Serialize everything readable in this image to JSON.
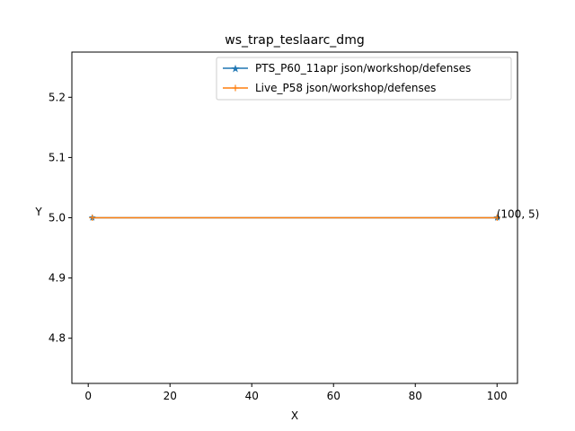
{
  "chart_data": {
    "type": "line",
    "title": "ws_trap_teslaarc_dmg",
    "xlabel": "X",
    "ylabel": "Y",
    "xlim": [
      -4,
      105
    ],
    "ylim": [
      4.725,
      5.275
    ],
    "xticks": [
      0,
      20,
      40,
      60,
      80,
      100
    ],
    "yticks": [
      4.8,
      4.9,
      5.0,
      5.1,
      5.2
    ],
    "xtick_labels": [
      "0",
      "20",
      "40",
      "60",
      "80",
      "100"
    ],
    "ytick_labels": [
      "4.8",
      "4.9",
      "5.0",
      "5.1",
      "5.2"
    ],
    "grid": false,
    "legend_position": "upper right",
    "series": [
      {
        "name": "PTS_P60_11apr json/workshop/defenses",
        "color": "#1f77b4",
        "marker": "star",
        "x": [
          1,
          100
        ],
        "y": [
          5,
          5
        ]
      },
      {
        "name": "Live_P58 json/workshop/defenses",
        "color": "#ff7f0e",
        "marker": "plus",
        "x": [
          1,
          100
        ],
        "y": [
          5,
          5
        ]
      }
    ],
    "annotations": [
      {
        "text": "(100, 5)",
        "x": 100,
        "y": 5
      }
    ]
  }
}
